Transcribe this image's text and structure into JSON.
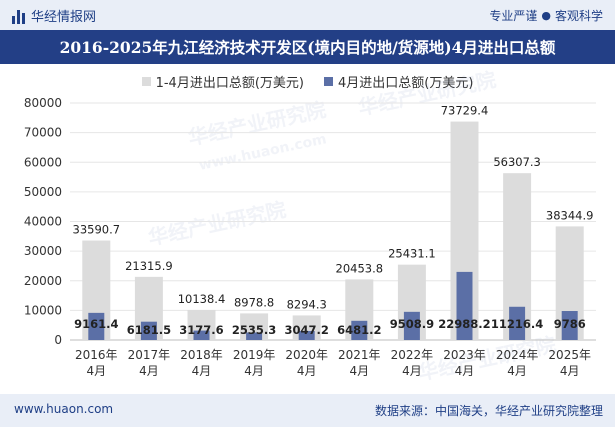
{
  "header": {
    "brand_name": "华经情报网",
    "tags": [
      "专业严谨",
      "客观科学"
    ],
    "tag_separator": "●"
  },
  "footer": {
    "left": "www.huaon.com",
    "right": "数据来源：中国海关，华经产业研究院整理"
  },
  "watermark": {
    "name": "华经产业研究院",
    "url": "www.huaon.com"
  },
  "colors": {
    "title_bar": "#233f86",
    "series_total": "#dcdcdc",
    "series_april": "#5b6fa6",
    "grid": "#e6e6e6"
  },
  "chart_data": {
    "type": "bar",
    "title": "2016-2025年九江经济技术开发区(境内目的地/货源地)4月进出口总额",
    "categories": [
      "2016年\n4月",
      "2017年\n4月",
      "2018年\n4月",
      "2019年\n4月",
      "2020年\n4月",
      "2021年\n4月",
      "2022年\n4月",
      "2023年\n4月",
      "2024年\n4月",
      "2025年\n4月"
    ],
    "series": [
      {
        "name": "1-4月进出口总额(万美元)",
        "values": [
          33590.7,
          21315.9,
          10138.4,
          8978.8,
          8294.3,
          20453.8,
          25431.1,
          73729.4,
          56307.3,
          38344.9
        ],
        "labels": [
          "33590.7",
          "21315.9",
          "10138.4",
          "8978.8",
          "8294.3",
          "20453.8",
          "25431.1",
          "73729.4",
          "56307.3",
          "38344.9"
        ]
      },
      {
        "name": "4月进出口总额(万美元)",
        "values": [
          9161.4,
          6181.5,
          3177.6,
          2535.3,
          3047.2,
          6481.2,
          9508.9,
          22988.2,
          11216.4,
          9786
        ],
        "labels": [
          "9161.4",
          "6181.5",
          "3177.6",
          "2535.3",
          "3047.2",
          "6481.2",
          "9508.9",
          "22988.2",
          "11216.4",
          "9786"
        ]
      }
    ],
    "yticks": [
      "0",
      "10000",
      "20000",
      "30000",
      "40000",
      "50000",
      "60000",
      "70000",
      "80000"
    ],
    "ylim": [
      0,
      80000
    ],
    "grid": true,
    "legend_position": "top-center"
  }
}
